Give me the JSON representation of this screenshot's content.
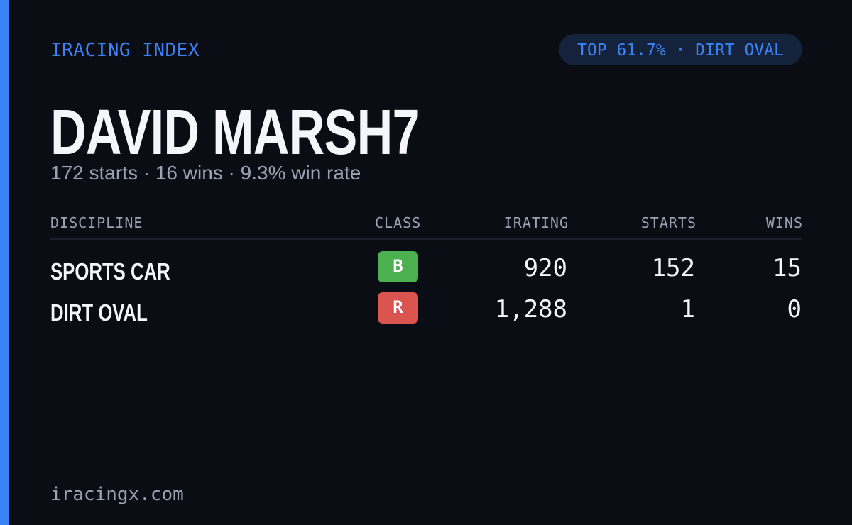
{
  "header": {
    "brand": "IRACING INDEX",
    "badge": "TOP 61.7% · DIRT OVAL"
  },
  "profile": {
    "name": "DAVID MARSH7",
    "stats": "172 starts · 16 wins · 9.3% win rate"
  },
  "table": {
    "columns": [
      "DISCIPLINE",
      "CLASS",
      "IRATING",
      "STARTS",
      "WINS"
    ],
    "rows": [
      [
        "SPORTS CAR",
        "B",
        "920",
        "152",
        "15"
      ],
      [
        "DIRT OVAL",
        "R",
        "1,288",
        "1",
        "0"
      ]
    ]
  },
  "footer": "iracingx.com"
}
